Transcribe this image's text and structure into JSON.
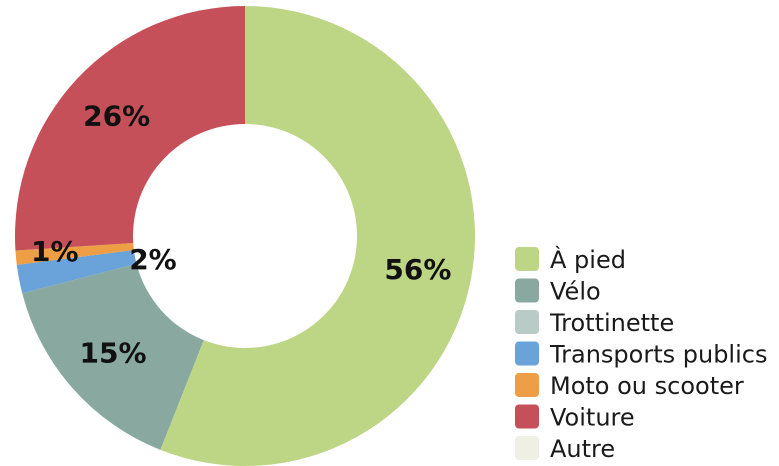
{
  "chart_data": {
    "type": "pie",
    "donut": true,
    "title": "",
    "legend_position": "right",
    "slices": [
      {
        "name": "À pied",
        "value": 56,
        "label": "56%",
        "color": "#bdd685"
      },
      {
        "name": "Vélo",
        "value": 15,
        "label": "15%",
        "color": "#88a8a0"
      },
      {
        "name": "Trottinette",
        "value": 0,
        "label": "",
        "color": "#b8cbc6"
      },
      {
        "name": "Transports publics",
        "value": 2,
        "label": "2%",
        "color": "#6aa3d9"
      },
      {
        "name": "Moto ou scooter",
        "value": 1,
        "label": "1%",
        "color": "#ee9f45"
      },
      {
        "name": "Voiture",
        "value": 26,
        "label": "26%",
        "color": "#c6505a"
      },
      {
        "name": "Autre",
        "value": 0,
        "label": "",
        "color": "#f0efe6"
      }
    ]
  }
}
